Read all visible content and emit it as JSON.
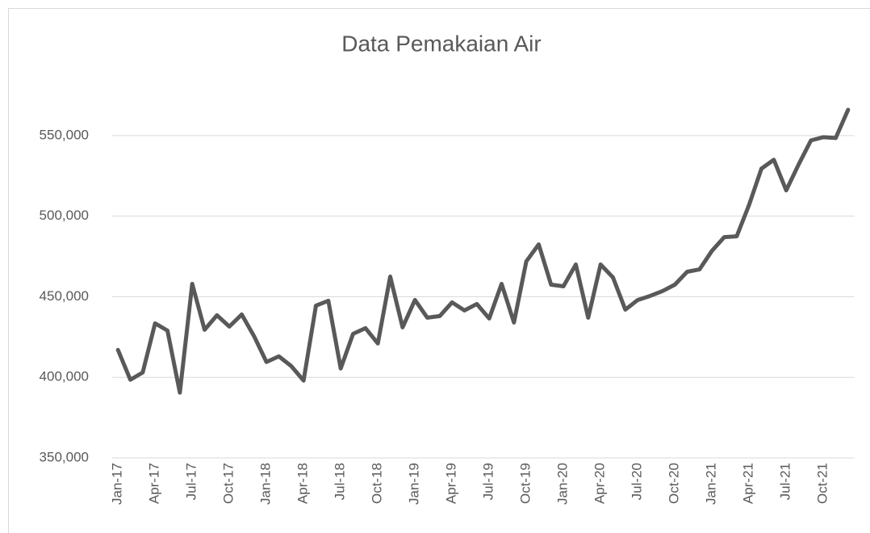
{
  "chart_data": {
    "type": "line",
    "title": "Data Pemakaian Air",
    "categories": [
      "Jan-17",
      null,
      null,
      "Apr-17",
      null,
      null,
      "Jul-17",
      null,
      null,
      "Oct-17",
      null,
      null,
      "Jan-18",
      null,
      null,
      "Apr-18",
      null,
      null,
      "Jul-18",
      null,
      null,
      "Oct-18",
      null,
      null,
      "Jan-19",
      null,
      null,
      "Apr-19",
      null,
      null,
      "Jul-19",
      null,
      null,
      "Oct-19",
      null,
      null,
      "Jan-20",
      null,
      null,
      "Apr-20",
      null,
      null,
      "Jul-20",
      null,
      null,
      "Oct-20",
      null,
      null,
      "Jan-21",
      null,
      null,
      "Apr-21",
      null,
      null,
      "Jul-21",
      null,
      null,
      "Oct-21",
      null,
      null
    ],
    "values": [
      417000,
      398500,
      403000,
      433500,
      429000,
      390500,
      458000,
      429500,
      438500,
      431500,
      439000,
      425500,
      409500,
      413000,
      407000,
      398000,
      444500,
      447500,
      405500,
      427000,
      430500,
      421000,
      462500,
      431000,
      448000,
      437000,
      438000,
      446500,
      441500,
      445500,
      436500,
      458000,
      434000,
      472000,
      482500,
      457500,
      456500,
      470000,
      437000,
      470000,
      462000,
      442000,
      448000,
      450500,
      453500,
      457500,
      465500,
      467000,
      478500,
      487000,
      487500,
      507000,
      529500,
      535000,
      516000,
      532000,
      547000,
      549000,
      548500,
      566000
    ],
    "color": "#595959",
    "ylim": [
      350000,
      575000
    ],
    "yticks": [
      {
        "value": 350000,
        "label": "350,000"
      },
      {
        "value": 400000,
        "label": "400,000"
      },
      {
        "value": 450000,
        "label": "450,000"
      },
      {
        "value": 500000,
        "label": "500,000"
      },
      {
        "value": 550000,
        "label": "550,000"
      }
    ],
    "grid": true
  }
}
